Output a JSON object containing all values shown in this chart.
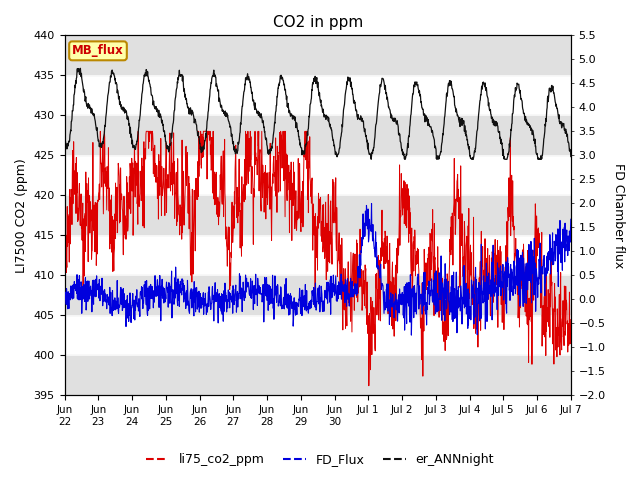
{
  "title": "CO2 in ppm",
  "ylabel_left": "LI7500 CO2 (ppm)",
  "ylabel_right": "FD Chamber flux",
  "ylim_left": [
    395,
    440
  ],
  "ylim_right": [
    -2.0,
    5.5
  ],
  "yticks_left": [
    395,
    400,
    405,
    410,
    415,
    420,
    425,
    430,
    435,
    440
  ],
  "yticks_right": [
    -2.0,
    -1.5,
    -1.0,
    -0.5,
    0.0,
    0.5,
    1.0,
    1.5,
    2.0,
    2.5,
    3.0,
    3.5,
    4.0,
    4.5,
    5.0,
    5.5
  ],
  "color_red": "#dd0000",
  "color_blue": "#0000dd",
  "color_black": "#111111",
  "color_gray_band": "#e0e0e0",
  "mb_flux_bg": "#ffffaa",
  "mb_flux_border": "#bb8800",
  "mb_flux_text": "#cc0000",
  "n_points": 1500,
  "seed": 7
}
